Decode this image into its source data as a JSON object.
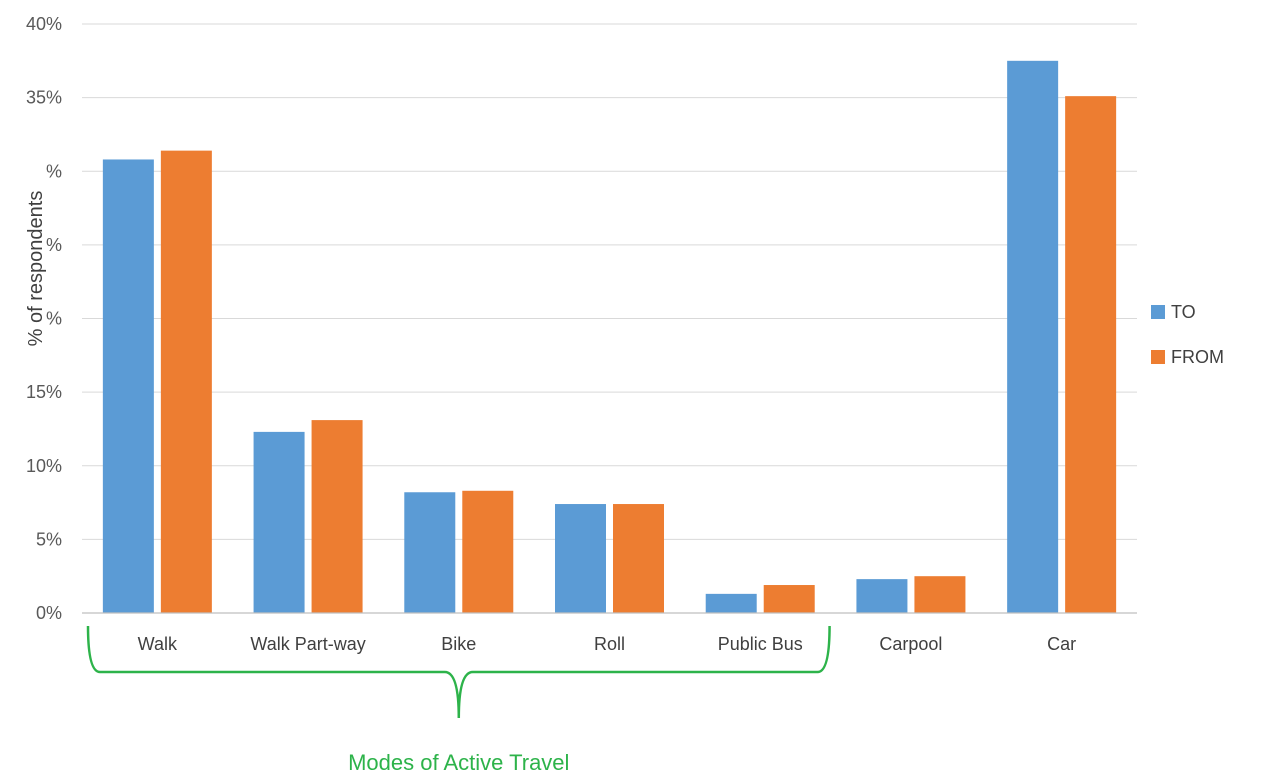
{
  "chart_data": {
    "type": "bar",
    "title": "",
    "xlabel": "",
    "ylabel": "% of respondents",
    "ylim": [
      0,
      40
    ],
    "yticks": [
      {
        "value": 0,
        "label": "0%"
      },
      {
        "value": 5,
        "label": "5%"
      },
      {
        "value": 10,
        "label": "10%"
      },
      {
        "value": 15,
        "label": "15%"
      },
      {
        "value": 20,
        "label": "%"
      },
      {
        "value": 25,
        "label": "%"
      },
      {
        "value": 30,
        "label": "%"
      },
      {
        "value": 35,
        "label": "35%"
      },
      {
        "value": 40,
        "label": "40%"
      }
    ],
    "categories": [
      "Walk",
      "Walk Part-way",
      "Bike",
      "Roll",
      "Public Bus",
      "Carpool",
      "Car"
    ],
    "series": [
      {
        "name": "TO",
        "color": "#5B9BD5",
        "values": [
          30.8,
          12.3,
          8.2,
          7.4,
          1.3,
          2.3,
          37.5
        ]
      },
      {
        "name": "FROM",
        "color": "#ED7D31",
        "values": [
          31.4,
          13.1,
          8.3,
          7.4,
          1.9,
          2.5,
          35.1
        ]
      }
    ],
    "grid": true,
    "legend_position": "right",
    "annotation": {
      "label": "Modes of Active Travel",
      "color": "#2DB34A",
      "spans_categories": [
        "Walk",
        "Walk Part-way",
        "Bike",
        "Roll",
        "Public Bus"
      ]
    }
  }
}
